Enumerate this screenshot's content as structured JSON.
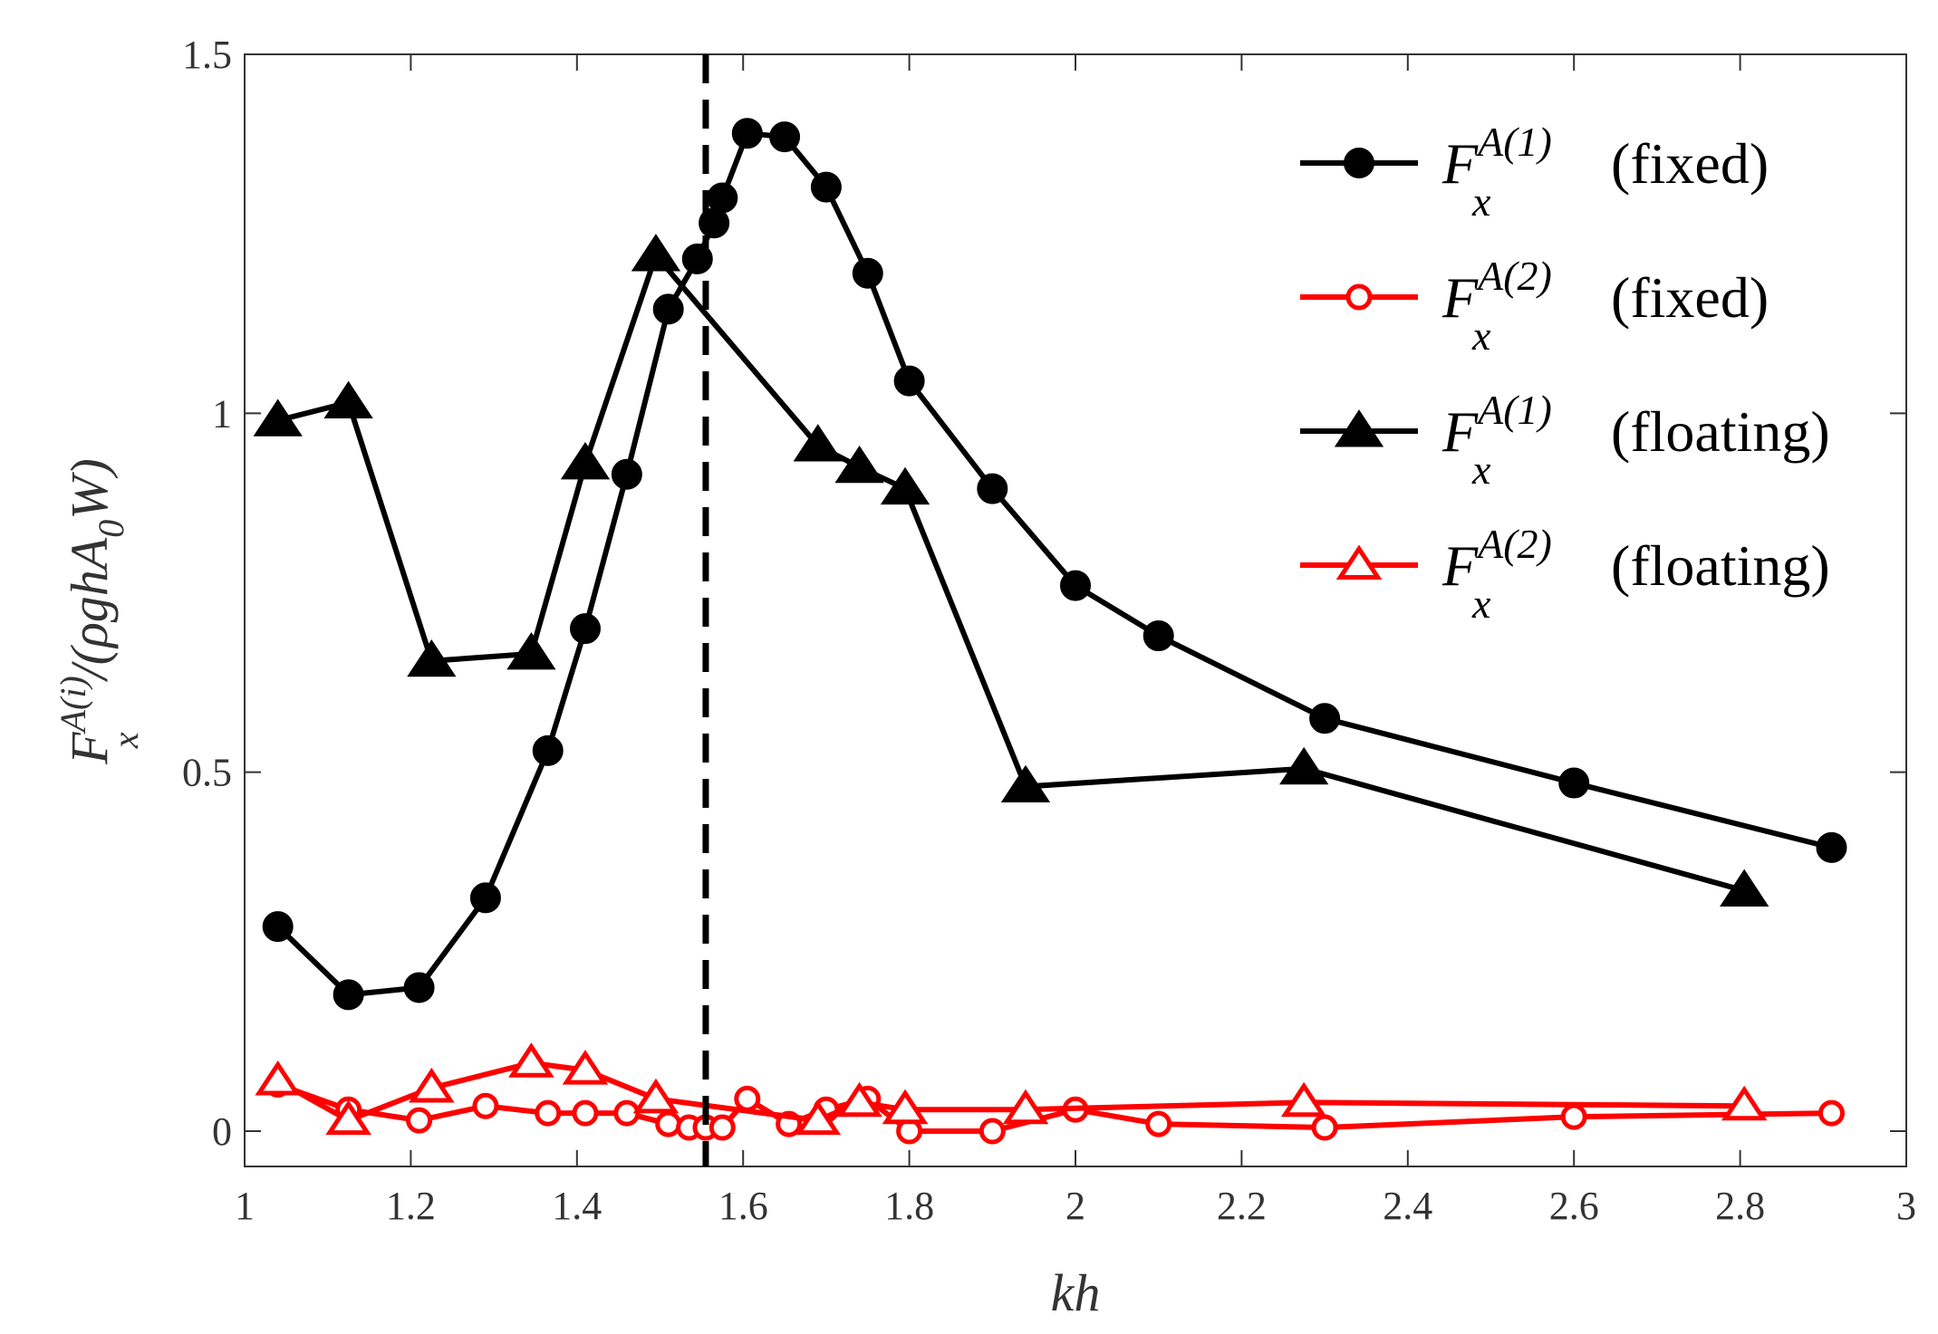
{
  "chart_data": {
    "type": "line",
    "title": "",
    "xlabel": "kh",
    "ylabel": "F_x^{A(i)}/(ρghA_0W)",
    "ylabel_parts": {
      "main": "F",
      "sup": "A(i)",
      "sub": "x",
      "rest_open": "/(",
      "rho_g_h": "ρghA",
      "sub2": "0",
      "w_close": "W)"
    },
    "xlim": [
      1,
      3
    ],
    "ylim": [
      -0.05,
      1.5
    ],
    "xticks": [
      "1",
      "1.2",
      "1.4",
      "1.6",
      "1.8",
      "2",
      "2.2",
      "2.4",
      "2.6",
      "2.8",
      "3"
    ],
    "xtick_values": [
      1,
      1.2,
      1.4,
      1.6,
      1.8,
      2,
      2.2,
      2.4,
      2.6,
      2.8,
      3
    ],
    "yticks": [
      "0",
      "0.5",
      "1",
      "1.5"
    ],
    "ytick_values": [
      0,
      0.5,
      1,
      1.5
    ],
    "grid": false,
    "legend_position": "top-right",
    "reference_line": {
      "x": 1.555,
      "style": "dashed",
      "color": "#000000"
    },
    "series": [
      {
        "name": "F_x^{A(1)} (fixed)",
        "legend_main": "F",
        "legend_sup": "A(1)",
        "legend_sub": "x",
        "legend_suffix": "(fixed)",
        "color": "#000000",
        "marker": "circle-filled",
        "x": [
          1.04,
          1.125,
          1.21,
          1.29,
          1.365,
          1.41,
          1.46,
          1.51,
          1.545,
          1.565,
          1.575,
          1.605,
          1.65,
          1.7,
          1.75,
          1.8,
          1.9,
          2.0,
          2.1,
          2.3,
          2.6,
          2.91
        ],
        "y": [
          0.285,
          0.19,
          0.2,
          0.325,
          0.53,
          0.7,
          0.915,
          1.145,
          1.215,
          1.265,
          1.3,
          1.39,
          1.385,
          1.315,
          1.195,
          1.045,
          0.895,
          0.76,
          0.69,
          0.575,
          0.485,
          0.395
        ]
      },
      {
        "name": "F_x^{A(2)} (fixed)",
        "legend_main": "F",
        "legend_sup": "A(2)",
        "legend_sub": "x",
        "legend_suffix": "(fixed)",
        "color": "#ff0000",
        "marker": "circle-open",
        "x": [
          1.04,
          1.125,
          1.21,
          1.29,
          1.365,
          1.41,
          1.46,
          1.51,
          1.535,
          1.555,
          1.575,
          1.605,
          1.655,
          1.7,
          1.75,
          1.8,
          1.9,
          2.0,
          2.1,
          2.3,
          2.6,
          2.91
        ],
        "y": [
          0.065,
          0.03,
          0.015,
          0.035,
          0.025,
          0.025,
          0.025,
          0.01,
          0.005,
          0.005,
          0.005,
          0.045,
          0.01,
          0.03,
          0.045,
          0.0,
          0.0,
          0.03,
          0.01,
          0.005,
          0.02,
          0.025
        ]
      },
      {
        "name": "F_x^{A(1)} (floating)",
        "legend_main": "F",
        "legend_sup": "A(1)",
        "legend_sub": "x",
        "legend_suffix": "(floating)",
        "color": "#000000",
        "marker": "triangle-filled",
        "x": [
          1.04,
          1.125,
          1.225,
          1.345,
          1.41,
          1.495,
          1.69,
          1.74,
          1.795,
          1.94,
          2.275,
          2.805
        ],
        "y": [
          0.99,
          1.015,
          0.655,
          0.665,
          0.93,
          1.22,
          0.955,
          0.925,
          0.895,
          0.48,
          0.505,
          0.335
        ]
      },
      {
        "name": "F_x^{A(2)} (floating)",
        "legend_main": "F",
        "legend_sup": "A(2)",
        "legend_sub": "x",
        "legend_suffix": "(floating)",
        "color": "#ff0000",
        "marker": "triangle-open",
        "x": [
          1.04,
          1.125,
          1.225,
          1.345,
          1.41,
          1.495,
          1.69,
          1.74,
          1.795,
          1.94,
          2.275,
          2.805
        ],
        "y": [
          0.07,
          0.015,
          0.06,
          0.095,
          0.085,
          0.045,
          0.015,
          0.04,
          0.03,
          0.03,
          0.04,
          0.035
        ]
      }
    ]
  }
}
